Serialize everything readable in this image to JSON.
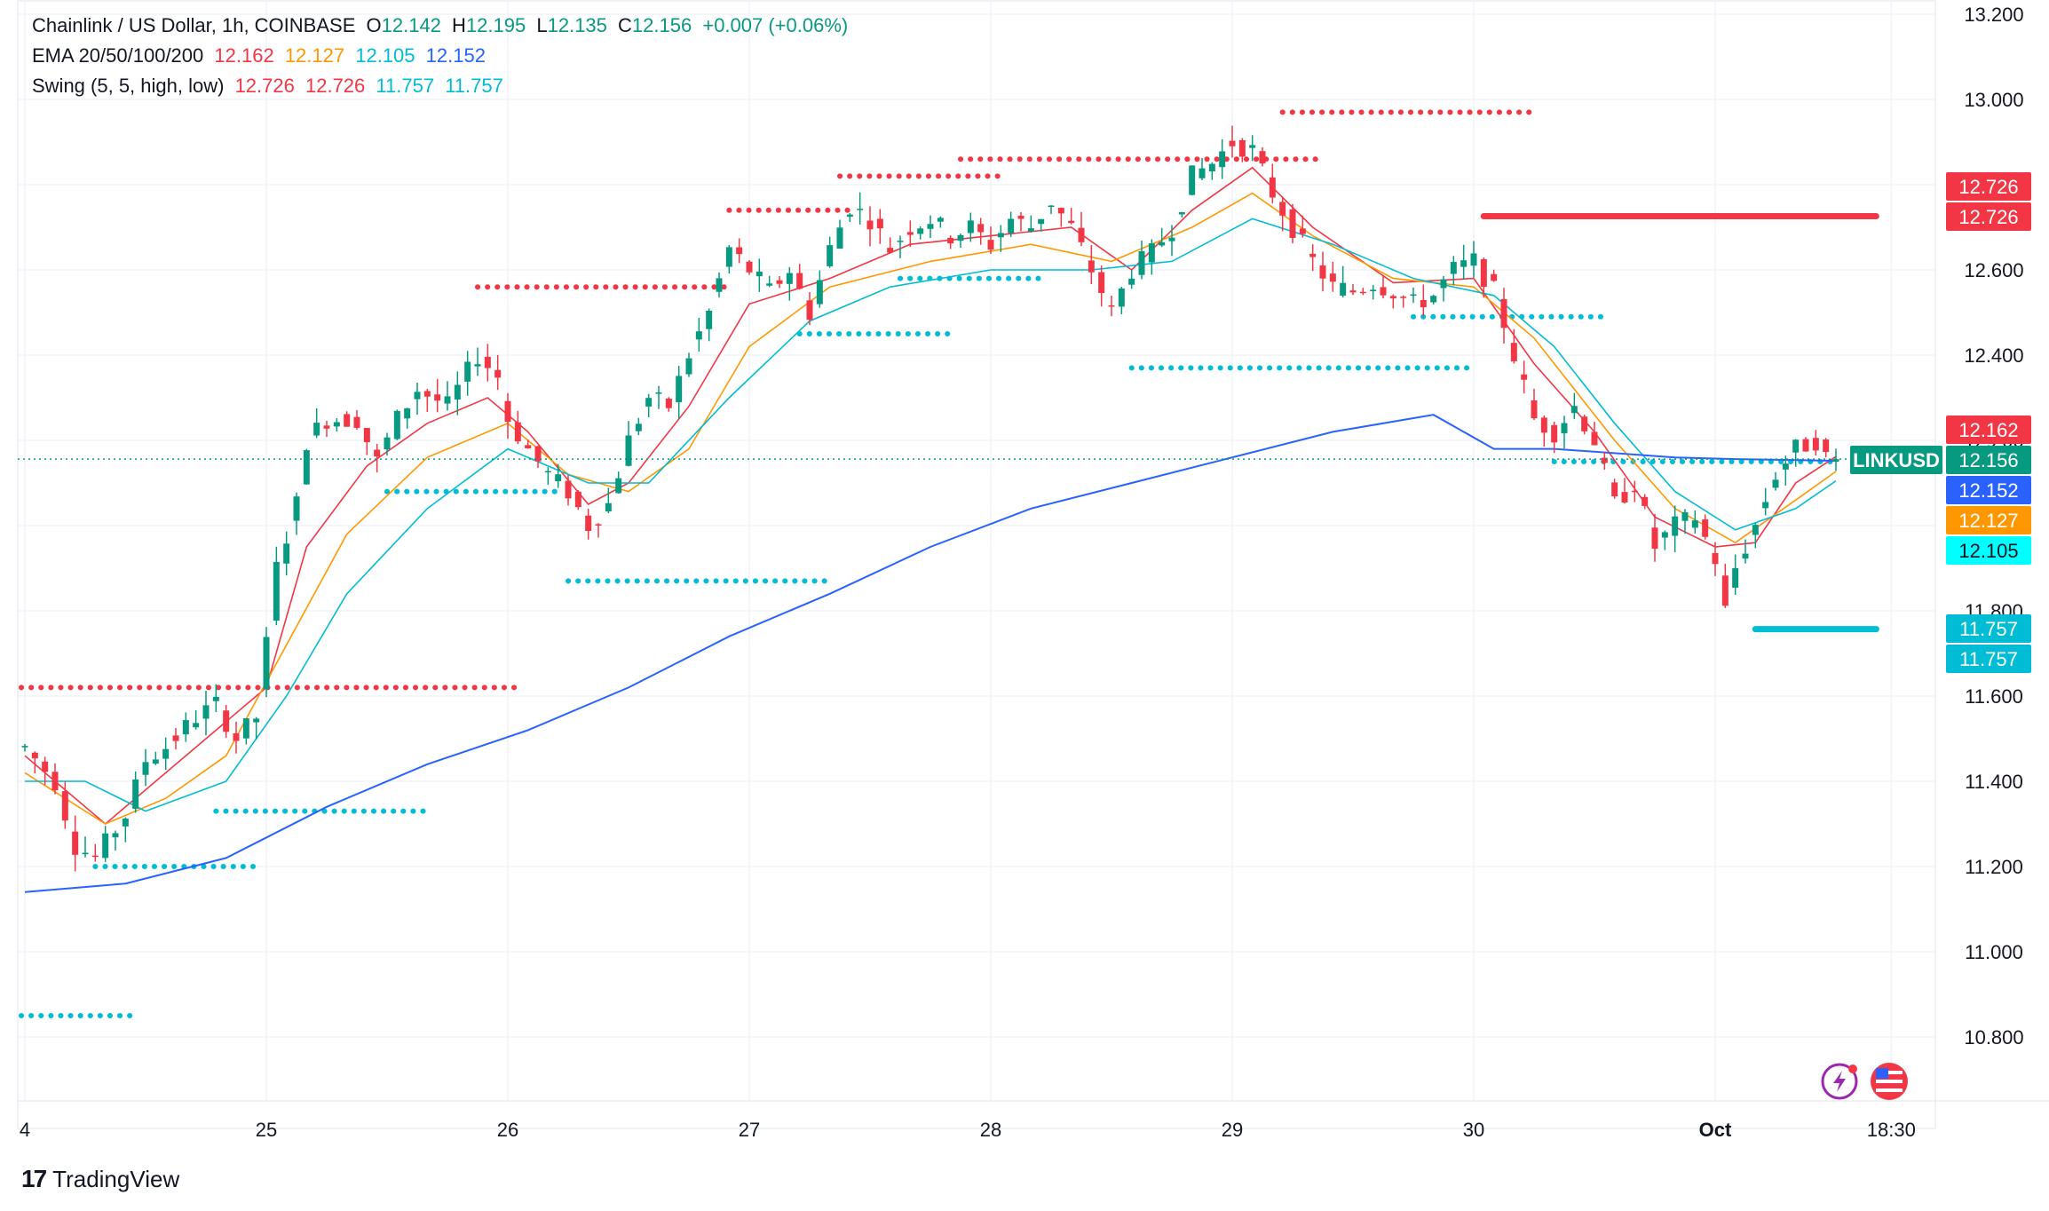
{
  "header": {
    "symbol_line": {
      "title": "Chainlink / US Dollar, 1h, COINBASE",
      "o_label": "O",
      "o": "12.142",
      "h_label": "H",
      "h": "12.195",
      "l_label": "L",
      "l": "12.135",
      "c_label": "C",
      "c": "12.156",
      "change": "+0.007 (+0.06%)"
    },
    "ema_line": {
      "label": "EMA 20/50/100/200",
      "v20": "12.162",
      "v50": "12.127",
      "v100": "12.105",
      "v200": "12.152"
    },
    "swing_line": {
      "label": "Swing (5, 5, high, low)",
      "v1": "12.726",
      "v2": "12.726",
      "v3": "11.757",
      "v4": "11.757"
    }
  },
  "colors": {
    "up": "#089981",
    "down": "#f23645",
    "ema20": "#f23645",
    "ema50": "#ff9800",
    "ema100": "#00bcd4",
    "ema200": "#2962ff",
    "swing_high": "#f23645",
    "swing_low": "#00bcd4",
    "symbol_tag": "#089981"
  },
  "footer": {
    "brand": "TradingView",
    "logo_glyph": "17"
  },
  "icons": [
    "lightning-icon",
    "us-flag-icon"
  ],
  "chart_data": {
    "type": "candlestick",
    "ylim": [
      10.7,
      13.2
    ],
    "y_ticks": [
      "13.200",
      "13.000",
      "12.800",
      "12.600",
      "12.400",
      "12.200",
      "12.000",
      "11.800",
      "11.600",
      "11.400",
      "11.200",
      "11.000",
      "10.800"
    ],
    "x_ticks": [
      "4",
      "25",
      "26",
      "27",
      "28",
      "29",
      "30",
      "Oct",
      "18:30"
    ],
    "x_tick_positions_hours": [
      0,
      24,
      48,
      72,
      96,
      120,
      144,
      168,
      185.5
    ],
    "last_price": 12.156,
    "price_tags": [
      {
        "label": "",
        "value": "12.726",
        "color": "#f23645"
      },
      {
        "label": "",
        "value": "12.726",
        "color": "#f23645"
      },
      {
        "label": "",
        "value": "12.162",
        "color": "#f23645"
      },
      {
        "label": "LINKUSD",
        "value": "12.156",
        "color": "#089981"
      },
      {
        "label": "",
        "value": "12.152",
        "color": "#2962ff"
      },
      {
        "label": "",
        "value": "12.127",
        "color": "#ff9800"
      },
      {
        "label": "",
        "value": "12.105",
        "color": "#00ffff"
      },
      {
        "label": "",
        "value": "11.757",
        "color": "#00bcd4"
      },
      {
        "label": "",
        "value": "11.757",
        "color": "#00bcd4"
      }
    ],
    "price_path": [
      [
        0,
        11.48
      ],
      [
        3,
        11.4
      ],
      [
        5,
        11.25
      ],
      [
        7,
        11.22
      ],
      [
        10,
        11.32
      ],
      [
        12,
        11.45
      ],
      [
        14,
        11.48
      ],
      [
        17,
        11.55
      ],
      [
        19,
        11.58
      ],
      [
        21,
        11.5
      ],
      [
        23,
        11.55
      ],
      [
        24,
        11.72
      ],
      [
        25,
        11.9
      ],
      [
        27,
        12.05
      ],
      [
        28,
        12.2
      ],
      [
        30,
        12.25
      ],
      [
        33,
        12.25
      ],
      [
        35,
        12.15
      ],
      [
        37,
        12.25
      ],
      [
        39,
        12.32
      ],
      [
        42,
        12.28
      ],
      [
        45,
        12.4
      ],
      [
        47,
        12.35
      ],
      [
        48,
        12.25
      ],
      [
        50,
        12.18
      ],
      [
        52,
        12.12
      ],
      [
        54,
        12.08
      ],
      [
        56,
        12.0
      ],
      [
        58,
        12.05
      ],
      [
        60,
        12.2
      ],
      [
        62,
        12.3
      ],
      [
        64,
        12.28
      ],
      [
        66,
        12.4
      ],
      [
        68,
        12.5
      ],
      [
        70,
        12.65
      ],
      [
        72,
        12.6
      ],
      [
        74,
        12.55
      ],
      [
        76,
        12.6
      ],
      [
        78,
        12.5
      ],
      [
        80,
        12.65
      ],
      [
        82,
        12.75
      ],
      [
        84,
        12.72
      ],
      [
        86,
        12.65
      ],
      [
        88,
        12.7
      ],
      [
        90,
        12.72
      ],
      [
        92,
        12.68
      ],
      [
        94,
        12.7
      ],
      [
        96,
        12.66
      ],
      [
        98,
        12.72
      ],
      [
        100,
        12.7
      ],
      [
        102,
        12.76
      ],
      [
        104,
        12.7
      ],
      [
        106,
        12.6
      ],
      [
        108,
        12.5
      ],
      [
        110,
        12.6
      ],
      [
        112,
        12.64
      ],
      [
        114,
        12.7
      ],
      [
        116,
        12.82
      ],
      [
        118,
        12.85
      ],
      [
        120,
        12.9
      ],
      [
        122,
        12.88
      ],
      [
        124,
        12.78
      ],
      [
        126,
        12.7
      ],
      [
        128,
        12.62
      ],
      [
        130,
        12.56
      ],
      [
        132,
        12.55
      ],
      [
        134,
        12.57
      ],
      [
        136,
        12.55
      ],
      [
        138,
        12.52
      ],
      [
        140,
        12.54
      ],
      [
        142,
        12.6
      ],
      [
        144,
        12.62
      ],
      [
        146,
        12.55
      ],
      [
        148,
        12.4
      ],
      [
        150,
        12.25
      ],
      [
        152,
        12.22
      ],
      [
        154,
        12.28
      ],
      [
        156,
        12.2
      ],
      [
        158,
        12.05
      ],
      [
        160,
        12.1
      ],
      [
        162,
        11.95
      ],
      [
        164,
        12.0
      ],
      [
        166,
        12.02
      ],
      [
        168,
        11.92
      ],
      [
        169,
        11.8
      ],
      [
        170,
        11.9
      ],
      [
        172,
        12.0
      ],
      [
        174,
        12.12
      ],
      [
        176,
        12.18
      ],
      [
        178,
        12.2
      ],
      [
        179,
        12.16
      ],
      [
        180,
        12.156
      ]
    ],
    "emas": [
      {
        "name": "EMA 20",
        "color": "#f23645",
        "values": [
          [
            0,
            11.46
          ],
          [
            8,
            11.3
          ],
          [
            12,
            11.38
          ],
          [
            18,
            11.5
          ],
          [
            24,
            11.62
          ],
          [
            28,
            11.95
          ],
          [
            34,
            12.14
          ],
          [
            40,
            12.24
          ],
          [
            46,
            12.3
          ],
          [
            50,
            12.22
          ],
          [
            56,
            12.05
          ],
          [
            60,
            12.1
          ],
          [
            66,
            12.28
          ],
          [
            72,
            12.52
          ],
          [
            80,
            12.58
          ],
          [
            88,
            12.66
          ],
          [
            96,
            12.68
          ],
          [
            104,
            12.7
          ],
          [
            110,
            12.6
          ],
          [
            116,
            12.74
          ],
          [
            122,
            12.84
          ],
          [
            128,
            12.7
          ],
          [
            136,
            12.57
          ],
          [
            144,
            12.58
          ],
          [
            150,
            12.38
          ],
          [
            156,
            12.22
          ],
          [
            162,
            12.02
          ],
          [
            168,
            11.95
          ],
          [
            172,
            11.96
          ],
          [
            176,
            12.1
          ],
          [
            180,
            12.162
          ]
        ]
      },
      {
        "name": "EMA 50",
        "color": "#ff9800",
        "values": [
          [
            0,
            11.42
          ],
          [
            8,
            11.3
          ],
          [
            14,
            11.36
          ],
          [
            20,
            11.46
          ],
          [
            26,
            11.72
          ],
          [
            32,
            11.98
          ],
          [
            40,
            12.16
          ],
          [
            48,
            12.24
          ],
          [
            54,
            12.12
          ],
          [
            60,
            12.08
          ],
          [
            66,
            12.18
          ],
          [
            72,
            12.42
          ],
          [
            80,
            12.56
          ],
          [
            90,
            12.62
          ],
          [
            100,
            12.66
          ],
          [
            108,
            12.62
          ],
          [
            116,
            12.7
          ],
          [
            122,
            12.78
          ],
          [
            128,
            12.68
          ],
          [
            136,
            12.58
          ],
          [
            144,
            12.56
          ],
          [
            150,
            12.44
          ],
          [
            158,
            12.2
          ],
          [
            164,
            12.04
          ],
          [
            170,
            11.96
          ],
          [
            176,
            12.06
          ],
          [
            180,
            12.127
          ]
        ]
      },
      {
        "name": "EMA 100",
        "color": "#00bcd4",
        "values": [
          [
            0,
            11.4
          ],
          [
            6,
            11.4
          ],
          [
            12,
            11.33
          ],
          [
            20,
            11.4
          ],
          [
            26,
            11.6
          ],
          [
            32,
            11.84
          ],
          [
            40,
            12.04
          ],
          [
            48,
            12.18
          ],
          [
            56,
            12.1
          ],
          [
            62,
            12.1
          ],
          [
            70,
            12.3
          ],
          [
            78,
            12.48
          ],
          [
            86,
            12.56
          ],
          [
            96,
            12.6
          ],
          [
            106,
            12.6
          ],
          [
            114,
            12.62
          ],
          [
            122,
            12.72
          ],
          [
            130,
            12.66
          ],
          [
            138,
            12.58
          ],
          [
            146,
            12.54
          ],
          [
            152,
            12.42
          ],
          [
            158,
            12.24
          ],
          [
            164,
            12.08
          ],
          [
            170,
            11.99
          ],
          [
            176,
            12.04
          ],
          [
            180,
            12.105
          ]
        ]
      },
      {
        "name": "EMA 200",
        "color": "#2962ff",
        "values": [
          [
            0,
            11.14
          ],
          [
            10,
            11.16
          ],
          [
            20,
            11.22
          ],
          [
            30,
            11.34
          ],
          [
            40,
            11.44
          ],
          [
            50,
            11.52
          ],
          [
            60,
            11.62
          ],
          [
            70,
            11.74
          ],
          [
            80,
            11.84
          ],
          [
            90,
            11.95
          ],
          [
            100,
            12.04
          ],
          [
            110,
            12.1
          ],
          [
            120,
            12.16
          ],
          [
            130,
            12.22
          ],
          [
            140,
            12.26
          ],
          [
            146,
            12.18
          ],
          [
            152,
            12.18
          ],
          [
            158,
            12.17
          ],
          [
            164,
            12.16
          ],
          [
            170,
            12.156
          ],
          [
            180,
            12.152
          ]
        ]
      }
    ],
    "swing_highs": [
      {
        "level": 11.62,
        "from": -1,
        "to": 49
      },
      {
        "level": 12.56,
        "from": 45,
        "to": 70
      },
      {
        "level": 12.74,
        "from": 70,
        "to": 82
      },
      {
        "level": 12.82,
        "from": 81,
        "to": 97
      },
      {
        "level": 12.86,
        "from": 93,
        "to": 129
      },
      {
        "level": 12.97,
        "from": 125,
        "to": 150
      }
    ],
    "swing_lows": [
      {
        "level": 11.2,
        "from": 7,
        "to": 23
      },
      {
        "level": 11.33,
        "from": 19,
        "to": 40
      },
      {
        "level": 12.08,
        "from": 36,
        "to": 53
      },
      {
        "level": 11.87,
        "from": 54,
        "to": 80
      },
      {
        "level": 12.45,
        "from": 77,
        "to": 92
      },
      {
        "level": 12.58,
        "from": 87,
        "to": 101
      },
      {
        "level": 12.37,
        "from": 110,
        "to": 144
      },
      {
        "level": 12.49,
        "from": 138,
        "to": 157
      },
      {
        "level": 12.15,
        "from": 152,
        "to": 180
      },
      {
        "level": 10.85,
        "from": -1,
        "to": 11
      }
    ],
    "active_swing_high": {
      "level": 12.726,
      "from": 145,
      "to": 184
    },
    "active_swing_low": {
      "level": 11.757,
      "from": 172,
      "to": 184
    }
  }
}
